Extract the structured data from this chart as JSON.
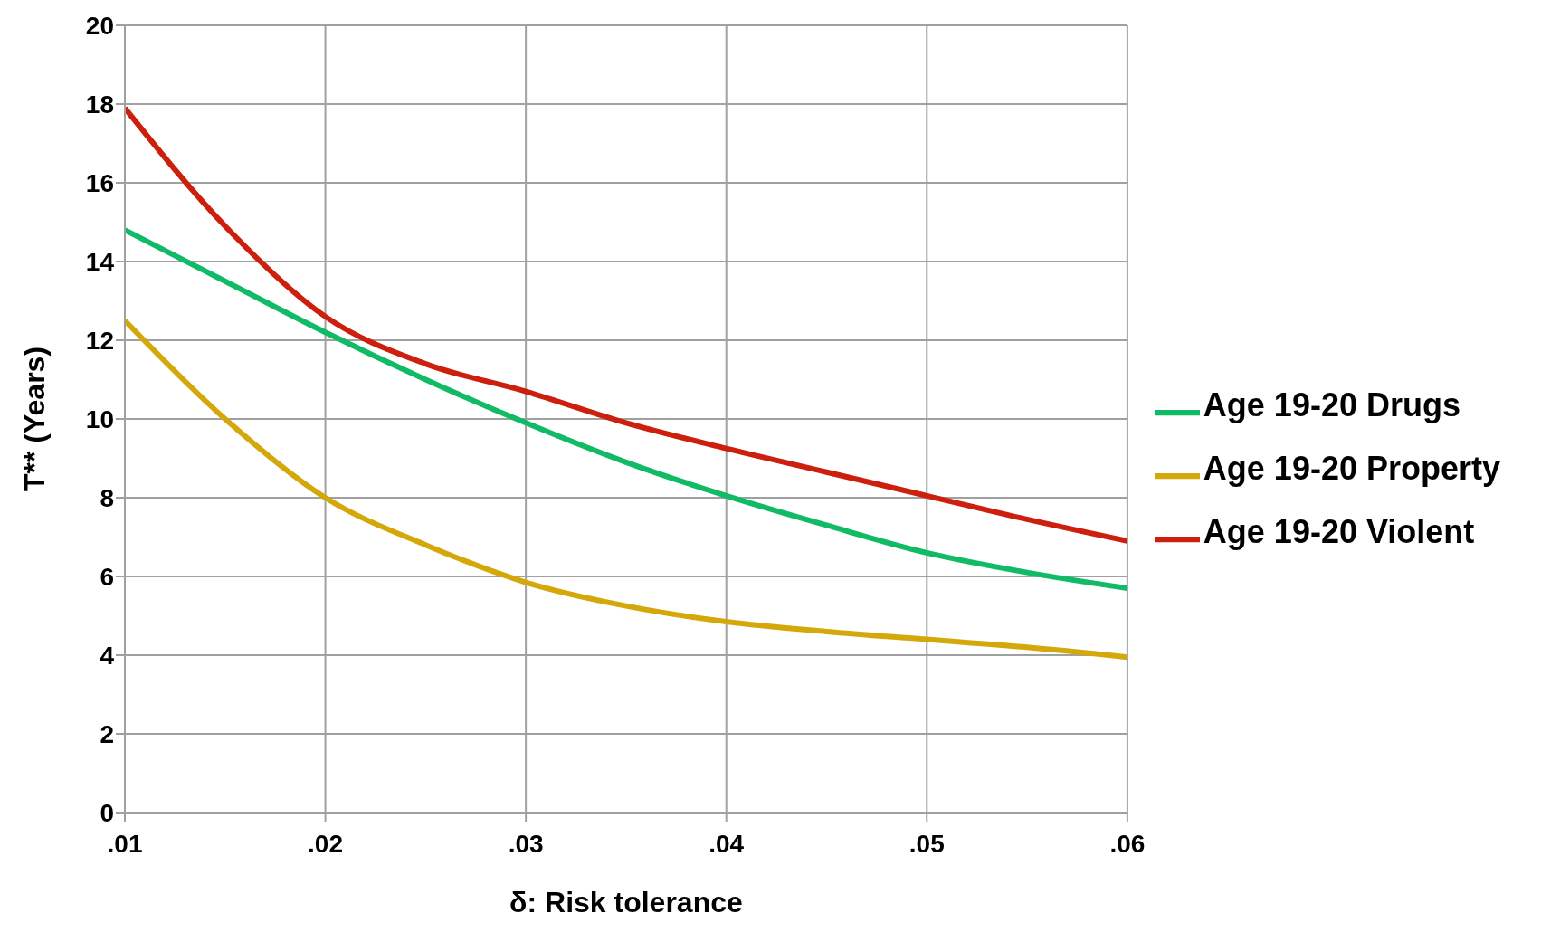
{
  "chart_data": {
    "type": "line",
    "xlabel": "δ: Risk tolerance",
    "ylabel": "T** (Years)",
    "x": [
      0.01,
      0.015,
      0.02,
      0.025,
      0.03,
      0.035,
      0.04,
      0.045,
      0.05,
      0.055,
      0.06
    ],
    "series": [
      {
        "name": "Age 19-20 Violent",
        "color": "#cc1f0e",
        "values": [
          17.9,
          14.9,
          12.6,
          11.4,
          10.7,
          9.9,
          9.25,
          8.65,
          8.05,
          7.45,
          6.9
        ]
      },
      {
        "name": "Age 19-20 Property",
        "color": "#d4a80a",
        "values": [
          12.5,
          10.0,
          8.0,
          6.8,
          5.85,
          5.25,
          4.85,
          4.6,
          4.4,
          4.2,
          3.95
        ]
      },
      {
        "name": "Age 19-20 Drugs",
        "color": "#11bb66",
        "values": [
          14.8,
          13.5,
          12.2,
          11.0,
          9.9,
          8.9,
          8.05,
          7.3,
          6.6,
          6.1,
          5.7
        ]
      }
    ],
    "xlim": [
      0.01,
      0.06
    ],
    "xticks": [
      {
        "value": 0.01,
        "label": ".01"
      },
      {
        "value": 0.02,
        "label": ".02"
      },
      {
        "value": 0.03,
        "label": ".03"
      },
      {
        "value": 0.04,
        "label": ".04"
      },
      {
        "value": 0.05,
        "label": ".05"
      },
      {
        "value": 0.06,
        "label": ".06"
      }
    ],
    "ylim": [
      0,
      20
    ],
    "yticks": [
      0,
      2,
      4,
      6,
      8,
      10,
      12,
      14,
      16,
      18,
      20
    ],
    "grid": true,
    "legend": "right",
    "marker": "none",
    "line_style": "solid"
  }
}
